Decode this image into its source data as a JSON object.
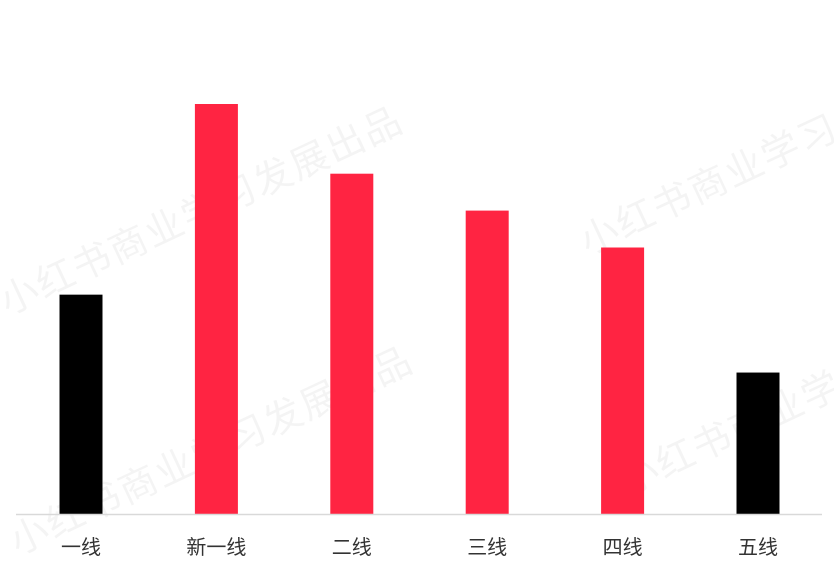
{
  "watermark": "小红书商业学习发展出品",
  "colors": {
    "highlight": "#000000",
    "default": "#ff2442",
    "axis": "#d9d9d9"
  },
  "chart_data": {
    "type": "bar",
    "title": "",
    "xlabel": "",
    "ylabel": "",
    "grid": false,
    "legend": "none",
    "categories": [
      "一线",
      "新一线",
      "二线",
      "三线",
      "四线",
      "五线"
    ],
    "values": [
      53.5,
      100,
      83,
      74,
      65,
      34.5
    ],
    "bar_colors": [
      "#000000",
      "#ff2442",
      "#ff2442",
      "#ff2442",
      "#ff2442",
      "#000000"
    ],
    "ylim": [
      0,
      100
    ]
  }
}
